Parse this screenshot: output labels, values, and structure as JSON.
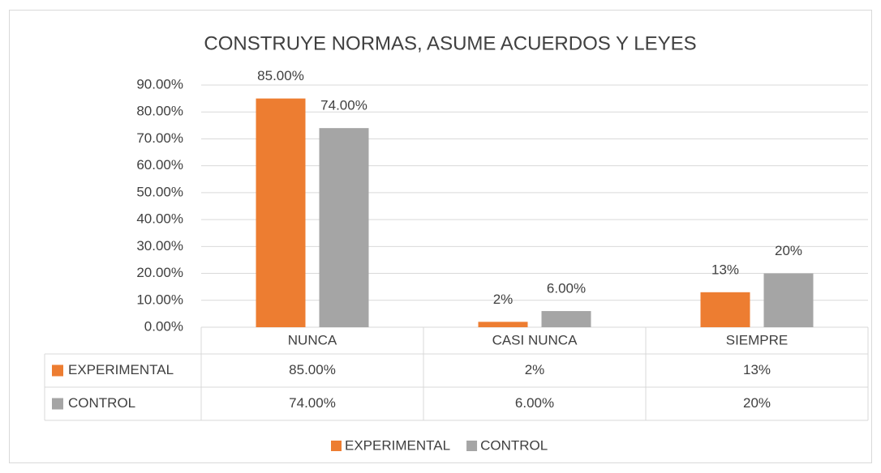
{
  "chart_data": {
    "type": "bar",
    "title": "CONSTRUYE NORMAS, ASUME ACUERDOS Y LEYES",
    "categories": [
      "NUNCA",
      "CASI NUNCA",
      "SIEMPRE"
    ],
    "series": [
      {
        "name": "EXPERIMENTAL",
        "color": "#ed7d31",
        "values": [
          85,
          2,
          13
        ],
        "value_labels": [
          "85.00%",
          "2%",
          "13%"
        ]
      },
      {
        "name": "CONTROL",
        "color": "#a5a5a5",
        "values": [
          74,
          6,
          20
        ],
        "value_labels": [
          "74.00%",
          "6.00%",
          "20%"
        ]
      }
    ],
    "ylim": [
      0,
      90
    ],
    "yticks": [
      {
        "value": 0,
        "label": "0.00%"
      },
      {
        "value": 10,
        "label": "10.00%"
      },
      {
        "value": 20,
        "label": "20.00%"
      },
      {
        "value": 30,
        "label": "30.00%"
      },
      {
        "value": 40,
        "label": "40.00%"
      },
      {
        "value": 50,
        "label": "50.00%"
      },
      {
        "value": 60,
        "label": "60.00%"
      },
      {
        "value": 70,
        "label": "70.00%"
      },
      {
        "value": 80,
        "label": "80.00%"
      },
      {
        "value": 90,
        "label": "90.00%"
      }
    ],
    "grid": true,
    "legend": "bottom"
  }
}
